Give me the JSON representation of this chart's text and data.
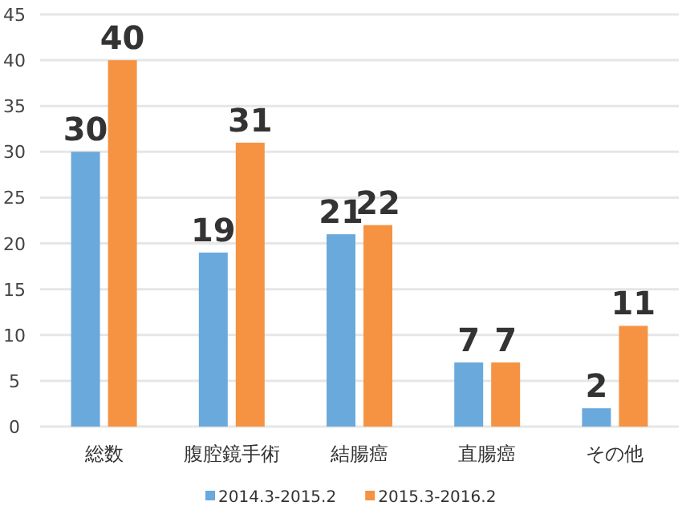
{
  "chart_data": {
    "type": "bar",
    "categories": [
      "総数",
      "腹腔鏡手術",
      "結腸癌",
      "直腸癌",
      "その他"
    ],
    "series": [
      {
        "name": "2014.3-2015.2",
        "color": "#6aa9dc",
        "values": [
          30,
          19,
          21,
          7,
          2
        ]
      },
      {
        "name": "2015.3-2016.2",
        "color": "#f59343",
        "values": [
          40,
          31,
          22,
          7,
          11
        ]
      }
    ],
    "ylim": [
      0,
      45
    ],
    "yticks": [
      0,
      5,
      10,
      15,
      20,
      25,
      30,
      35,
      40,
      45
    ],
    "grid": "y",
    "legend": "bottom",
    "data_labels": true
  }
}
